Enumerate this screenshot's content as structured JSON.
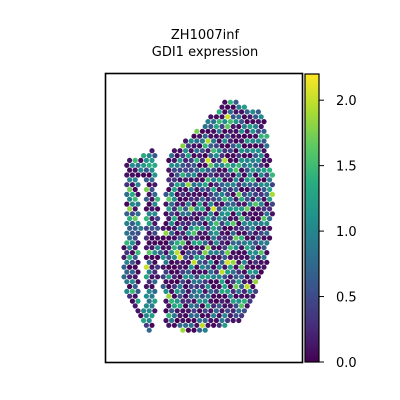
{
  "chart_data": {
    "type": "scatter",
    "title_lines": [
      "ZH1007inf",
      "GDI1 expression"
    ],
    "xlabel": "",
    "ylabel": "",
    "grid": false,
    "axes_ticks": false,
    "colormap": "viridis",
    "colorbar": {
      "range": [
        0.0,
        2.2
      ],
      "ticks": [
        0.0,
        0.5,
        1.0,
        1.5,
        2.0
      ],
      "tick_labels": [
        "0.0",
        "0.5",
        "1.0",
        "1.5",
        "2.0"
      ]
    },
    "spots": {
      "description_units": "spatial spot coordinates, color = GDI1 expression",
      "value_distribution": "mostly 0.0-1.3, sparse highs up to ~2.1",
      "left_lobe_outline": [
        [
          0.1,
          0.3
        ],
        [
          0.25,
          0.26
        ],
        [
          0.28,
          0.62
        ],
        [
          0.24,
          0.88
        ],
        [
          0.2,
          0.9
        ],
        [
          0.08,
          0.72
        ],
        [
          0.1,
          0.5
        ]
      ],
      "right_lobe_outline": [
        [
          0.32,
          0.28
        ],
        [
          0.48,
          0.18
        ],
        [
          0.62,
          0.08
        ],
        [
          0.8,
          0.14
        ],
        [
          0.86,
          0.42
        ],
        [
          0.82,
          0.66
        ],
        [
          0.7,
          0.86
        ],
        [
          0.44,
          0.9
        ],
        [
          0.3,
          0.88
        ],
        [
          0.28,
          0.62
        ]
      ]
    }
  }
}
